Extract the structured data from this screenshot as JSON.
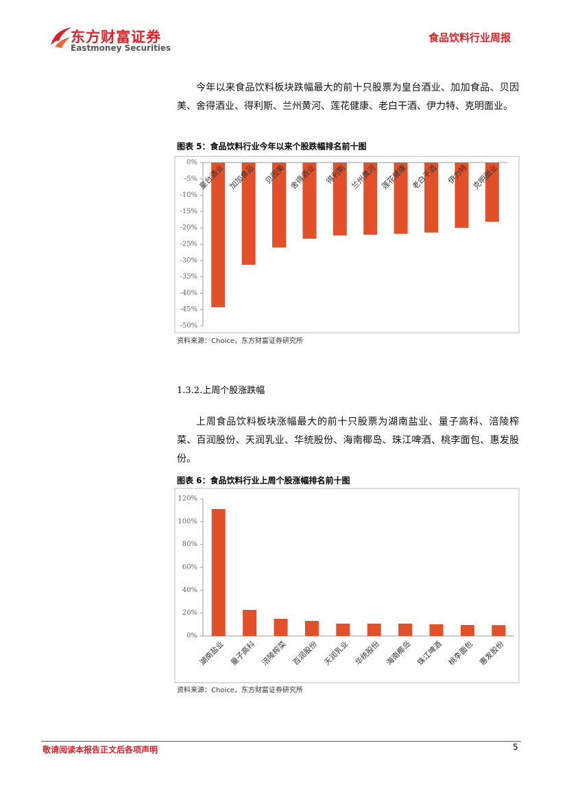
{
  "header": {
    "brand_cn": "东方财富证券",
    "brand_en": "Eastmoney Securities",
    "report_name": "食品饮料行业周报"
  },
  "paragraphs": [
    "今年以来食品饮料板块跌幅最大的前十只股票为皇台酒业、加加食品、贝因美、舍得酒业、得利斯、兰州黄河、莲花健康、老白干酒、伊力特、克明面业。",
    "上周食品饮料板块涨幅最大的前十只股票为湖南盐业、量子高科、涪陵榨菜、百润股份、天润乳业、华统股份、海南椰岛、珠江啤酒、桃李面包、惠发股份。"
  ],
  "section_heading": "1.3.2.上周个股涨跌幅",
  "chart_data": [
    {
      "type": "bar",
      "title": "图表 5：食品饮料行业今年以来个股跌幅排名前十图",
      "categories": [
        "皇台酒业",
        "加加食品",
        "贝因美",
        "舍得酒业",
        "得利斯",
        "兰州黄河",
        "莲花健康",
        "老白干酒",
        "伊力特",
        "克明面业"
      ],
      "values": [
        -44.3,
        -31.3,
        -26.0,
        -23.3,
        -22.3,
        -22.1,
        -21.8,
        -21.4,
        -20.0,
        -18.1
      ],
      "color": "#e2502a",
      "ylim": [
        -50,
        0
      ],
      "yticks": [
        {
          "value": 0,
          "label": "0%"
        },
        {
          "value": -5,
          "label": "-5%"
        },
        {
          "value": -10,
          "label": "-10%"
        },
        {
          "value": -15,
          "label": "-15%"
        },
        {
          "value": -20,
          "label": "-20%"
        },
        {
          "value": -25,
          "label": "-25%"
        },
        {
          "value": -30,
          "label": "-30%"
        },
        {
          "value": -35,
          "label": "-35%"
        },
        {
          "value": -40,
          "label": "-40%"
        },
        {
          "value": -45,
          "label": "-45%"
        },
        {
          "value": -50,
          "label": "-50%"
        }
      ],
      "source": "资料来源：Choice，东方财富证券研究所"
    },
    {
      "type": "bar",
      "title": "图表 6：食品饮料行业上周个股涨幅排名前十图",
      "categories": [
        "湖南盐业",
        "量子高科",
        "涪陵榨菜",
        "百润股份",
        "天润乳业",
        "华统股份",
        "海南椰岛",
        "珠江啤酒",
        "桃李面包",
        "惠发股份"
      ],
      "values": [
        111,
        22.8,
        15.0,
        13.2,
        10.8,
        10.8,
        10.8,
        10.2,
        9.6,
        9.5
      ],
      "color": "#e2502a",
      "ylim": [
        0,
        120
      ],
      "yticks": [
        {
          "value": 0,
          "label": "0%"
        },
        {
          "value": 20,
          "label": "20%"
        },
        {
          "value": 40,
          "label": "40%"
        },
        {
          "value": 60,
          "label": "60%"
        },
        {
          "value": 80,
          "label": "80%"
        },
        {
          "value": 100,
          "label": "100%"
        },
        {
          "value": 120,
          "label": "120%"
        }
      ],
      "source": "资料来源：Choice，东方财富证券研究所"
    }
  ],
  "footer": {
    "disclaimer": "敬请阅读本报告正文后各项声明",
    "page": "5"
  }
}
